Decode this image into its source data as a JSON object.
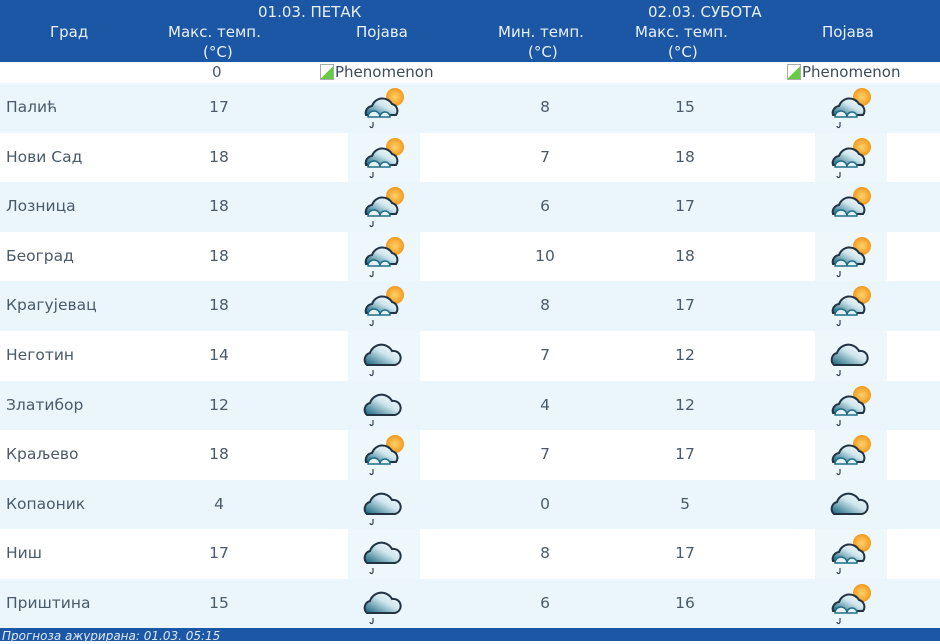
{
  "header": {
    "city": "Град",
    "day1": {
      "date": "01.03. ПЕТАК",
      "max": "Макс. темп.",
      "unit": "(°C)",
      "phenomenon": "Појава"
    },
    "day2": {
      "date": "02.03. СУБОТА",
      "min": "Мин. темп.",
      "max": "Макс. темп.",
      "unit": "(°C)",
      "phenomenon": "Појава"
    }
  },
  "subrow": {
    "day1_max": "0",
    "day1_alt": "Phenomenon",
    "day2_alt": "Phenomenon"
  },
  "rows": [
    {
      "city": "Палић",
      "d1_max": "17",
      "d1_icon": "partly-cloudy-rain",
      "d2_min": "8",
      "d2_max": "15",
      "d2_icon": "partly-cloudy-rain"
    },
    {
      "city": "Нови Сад",
      "d1_max": "18",
      "d1_icon": "partly-cloudy-rain",
      "d2_min": "7",
      "d2_max": "18",
      "d2_icon": "partly-cloudy-rain"
    },
    {
      "city": "Лозница",
      "d1_max": "18",
      "d1_icon": "partly-cloudy-rain",
      "d2_min": "6",
      "d2_max": "17",
      "d2_icon": "partly-cloudy"
    },
    {
      "city": "Београд",
      "d1_max": "18",
      "d1_icon": "partly-cloudy-rain",
      "d2_min": "10",
      "d2_max": "18",
      "d2_icon": "partly-cloudy-rain"
    },
    {
      "city": "Крагујевац",
      "d1_max": "18",
      "d1_icon": "partly-cloudy-rain",
      "d2_min": "8",
      "d2_max": "17",
      "d2_icon": "partly-cloudy-rain"
    },
    {
      "city": "Неготин",
      "d1_max": "14",
      "d1_icon": "cloudy-rain",
      "d2_min": "7",
      "d2_max": "12",
      "d2_icon": "cloudy-rain"
    },
    {
      "city": "Златибор",
      "d1_max": "12",
      "d1_icon": "cloudy-rain",
      "d2_min": "4",
      "d2_max": "12",
      "d2_icon": "partly-cloudy-rain"
    },
    {
      "city": "Краљево",
      "d1_max": "18",
      "d1_icon": "partly-cloudy-rain",
      "d2_min": "7",
      "d2_max": "17",
      "d2_icon": "partly-cloudy-rain"
    },
    {
      "city": "Копаоник",
      "d1_max": "4",
      "d1_icon": "cloudy-rain",
      "d2_min": "0",
      "d2_max": "5",
      "d2_icon": "cloudy"
    },
    {
      "city": "Ниш",
      "d1_max": "17",
      "d1_icon": "cloudy-rain",
      "d2_min": "8",
      "d2_max": "17",
      "d2_icon": "partly-cloudy-rain"
    },
    {
      "city": "Приштина",
      "d1_max": "15",
      "d1_icon": "cloudy-rain",
      "d2_min": "6",
      "d2_max": "16",
      "d2_icon": "partly-cloudy-rain"
    }
  ],
  "colors": {
    "header_bg": "#1c57a5",
    "row_alt_bg": "#eaf6fc",
    "sun": "#f5a623",
    "cloud": "#1f6f86"
  },
  "footer": {
    "updated": "Прогноза ажурирана:  01.03. 05:15"
  }
}
